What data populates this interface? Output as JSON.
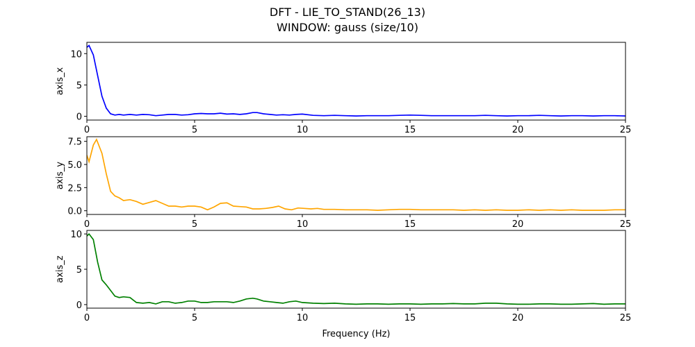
{
  "figure": {
    "title_line1": "DFT - LIE_TO_STAND(26_13)",
    "title_line2": "WINDOW: gauss (size/10)"
  },
  "chart_data": [
    {
      "type": "line",
      "ylabel": "axis_x",
      "xlabel": "",
      "xlim": [
        0,
        25
      ],
      "ylim": [
        -0.6,
        11.8
      ],
      "xticks": [
        0,
        5,
        10,
        15,
        20,
        25
      ],
      "xtick_labels": [
        "0",
        "5",
        "10",
        "15",
        "20",
        "25"
      ],
      "yticks": [
        0,
        5,
        10
      ],
      "ytick_labels": [
        "0",
        "5",
        "10"
      ],
      "color": "#0000ff",
      "x": [
        0,
        0.1,
        0.3,
        0.5,
        0.7,
        0.9,
        1.1,
        1.3,
        1.5,
        1.7,
        2.0,
        2.3,
        2.6,
        2.9,
        3.2,
        3.5,
        3.8,
        4.1,
        4.4,
        4.7,
        5.0,
        5.3,
        5.6,
        5.9,
        6.2,
        6.5,
        6.8,
        7.1,
        7.4,
        7.7,
        7.9,
        8.2,
        8.5,
        8.8,
        9.1,
        9.4,
        9.7,
        10.0,
        10.5,
        11.0,
        11.5,
        12.0,
        12.5,
        13.0,
        13.5,
        14.0,
        14.5,
        15.0,
        15.5,
        16.0,
        16.5,
        17.0,
        17.5,
        18.0,
        18.5,
        19.0,
        19.5,
        20.0,
        20.5,
        21.0,
        21.5,
        22.0,
        22.5,
        23.0,
        23.5,
        24.0,
        24.5,
        25.0
      ],
      "y": [
        11.0,
        11.3,
        9.8,
        6.5,
        3.2,
        1.3,
        0.4,
        0.2,
        0.3,
        0.2,
        0.3,
        0.2,
        0.3,
        0.25,
        0.1,
        0.2,
        0.3,
        0.3,
        0.2,
        0.25,
        0.4,
        0.45,
        0.4,
        0.4,
        0.5,
        0.35,
        0.4,
        0.3,
        0.4,
        0.6,
        0.6,
        0.4,
        0.3,
        0.2,
        0.25,
        0.2,
        0.3,
        0.35,
        0.15,
        0.1,
        0.15,
        0.1,
        0.05,
        0.1,
        0.1,
        0.1,
        0.15,
        0.2,
        0.15,
        0.1,
        0.1,
        0.1,
        0.1,
        0.1,
        0.15,
        0.1,
        0.05,
        0.1,
        0.1,
        0.15,
        0.1,
        0.05,
        0.1,
        0.1,
        0.05,
        0.1,
        0.1,
        0.05
      ]
    },
    {
      "type": "line",
      "ylabel": "axis_y",
      "xlabel": "",
      "xlim": [
        0,
        25
      ],
      "ylim": [
        -0.4,
        8.0
      ],
      "xticks": [
        0,
        5,
        10,
        15,
        20,
        25
      ],
      "xtick_labels": [
        "0",
        "5",
        "10",
        "15",
        "20",
        "25"
      ],
      "yticks": [
        0,
        2.5,
        5,
        7.5
      ],
      "ytick_labels": [
        "0.0",
        "2.5",
        "5.0",
        "7.5"
      ],
      "color": "#ffa500",
      "x": [
        0,
        0.1,
        0.3,
        0.45,
        0.7,
        0.9,
        1.1,
        1.3,
        1.5,
        1.7,
        2.0,
        2.3,
        2.6,
        2.9,
        3.2,
        3.5,
        3.8,
        4.1,
        4.4,
        4.7,
        5.0,
        5.3,
        5.6,
        5.9,
        6.2,
        6.5,
        6.8,
        7.1,
        7.4,
        7.7,
        8.0,
        8.3,
        8.6,
        8.9,
        9.2,
        9.5,
        9.8,
        10.1,
        10.4,
        10.7,
        11.0,
        11.5,
        12.0,
        12.5,
        13.0,
        13.5,
        14.0,
        14.5,
        15.0,
        15.5,
        16.0,
        16.5,
        17.0,
        17.5,
        18.0,
        18.5,
        19.0,
        19.5,
        20.0,
        20.5,
        21.0,
        21.5,
        22.0,
        22.5,
        23.0,
        23.5,
        24.0,
        24.5,
        25.0
      ],
      "y": [
        6.0,
        5.3,
        7.1,
        7.7,
        6.2,
        4.0,
        2.1,
        1.6,
        1.4,
        1.1,
        1.2,
        1.0,
        0.7,
        0.9,
        1.1,
        0.8,
        0.5,
        0.5,
        0.4,
        0.5,
        0.5,
        0.4,
        0.1,
        0.4,
        0.8,
        0.85,
        0.5,
        0.45,
        0.4,
        0.2,
        0.2,
        0.25,
        0.35,
        0.5,
        0.2,
        0.1,
        0.3,
        0.25,
        0.2,
        0.25,
        0.15,
        0.15,
        0.1,
        0.1,
        0.1,
        0.05,
        0.1,
        0.15,
        0.15,
        0.1,
        0.1,
        0.1,
        0.1,
        0.05,
        0.1,
        0.05,
        0.1,
        0.05,
        0.05,
        0.1,
        0.05,
        0.1,
        0.05,
        0.1,
        0.05,
        0.05,
        0.05,
        0.1,
        0.1
      ]
    },
    {
      "type": "line",
      "ylabel": "axis_z",
      "xlabel": "Frequency (Hz)",
      "xlim": [
        0,
        25
      ],
      "ylim": [
        -0.5,
        10.5
      ],
      "xticks": [
        0,
        5,
        10,
        15,
        20,
        25
      ],
      "xtick_labels": [
        "0",
        "5",
        "10",
        "15",
        "20",
        "25"
      ],
      "yticks": [
        0,
        5,
        10
      ],
      "ytick_labels": [
        "0",
        "5",
        "10"
      ],
      "color": "#008000",
      "x": [
        0,
        0.1,
        0.3,
        0.5,
        0.7,
        0.9,
        1.1,
        1.3,
        1.5,
        1.7,
        2.0,
        2.3,
        2.6,
        2.9,
        3.2,
        3.5,
        3.8,
        4.1,
        4.4,
        4.7,
        5.0,
        5.3,
        5.6,
        5.9,
        6.2,
        6.5,
        6.8,
        7.1,
        7.4,
        7.7,
        7.9,
        8.2,
        8.5,
        8.8,
        9.1,
        9.4,
        9.7,
        10.0,
        10.5,
        11.0,
        11.5,
        12.0,
        12.5,
        13.0,
        13.5,
        14.0,
        14.5,
        15.0,
        15.5,
        16.0,
        16.5,
        17.0,
        17.5,
        18.0,
        18.5,
        19.0,
        19.5,
        20.0,
        20.5,
        21.0,
        21.5,
        22.0,
        22.5,
        23.0,
        23.5,
        24.0,
        24.5,
        25.0
      ],
      "y": [
        9.7,
        10.0,
        9.2,
        6.0,
        3.5,
        2.8,
        2.0,
        1.2,
        1.0,
        1.1,
        1.0,
        0.3,
        0.2,
        0.3,
        0.1,
        0.4,
        0.4,
        0.2,
        0.3,
        0.5,
        0.5,
        0.3,
        0.3,
        0.4,
        0.4,
        0.4,
        0.3,
        0.5,
        0.8,
        0.9,
        0.8,
        0.5,
        0.4,
        0.3,
        0.2,
        0.4,
        0.5,
        0.3,
        0.2,
        0.15,
        0.2,
        0.1,
        0.05,
        0.1,
        0.1,
        0.05,
        0.1,
        0.1,
        0.05,
        0.1,
        0.1,
        0.15,
        0.1,
        0.1,
        0.2,
        0.2,
        0.1,
        0.05,
        0.05,
        0.1,
        0.1,
        0.05,
        0.05,
        0.1,
        0.15,
        0.05,
        0.1,
        0.1
      ]
    }
  ]
}
